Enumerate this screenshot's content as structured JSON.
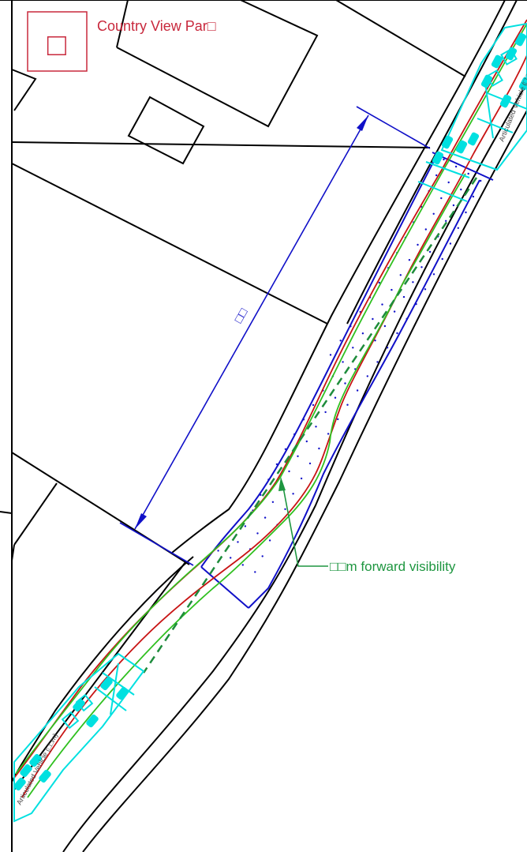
{
  "site": {
    "name": "Country View Par□",
    "symbol": "□"
  },
  "dimension": {
    "label": "□□"
  },
  "visibility": {
    "label": "□□m forward visibility"
  },
  "vehicles": {
    "top_label": "Articulated Vehicle (□□m)",
    "bottom_label": "Articulated Vehicle (□□m)"
  },
  "colors": {
    "line": "#000000",
    "road_edge": "#1010c8",
    "kerb": "#c81414",
    "swept_path": "#30c020",
    "sightline": "#1e8c3c",
    "vehicle": "#00e0e0",
    "site_label": "#c8283c",
    "annotation": "#1e9640"
  }
}
